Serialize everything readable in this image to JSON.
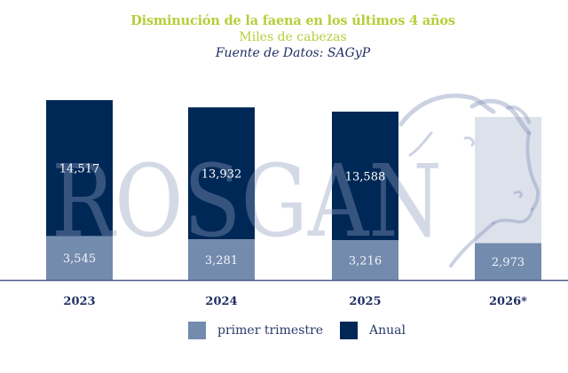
{
  "header": {
    "title": "Disminución de la faena en los últimos 4 años",
    "subtitle": "Miles de cabezas",
    "source": "Fuente de Datos: SAGyP"
  },
  "watermark": {
    "text": "ROSGAN",
    "icon": "cow-head-icon"
  },
  "colors": {
    "title": "#b5cf3b",
    "source": "#1f2f63",
    "anual": "#002856",
    "primer_trimestre": "#738bad",
    "projected": "#dde1ec",
    "baseline": "#4a5a8a",
    "axis_label": "#1f2f63"
  },
  "chart_data": {
    "type": "bar",
    "title": "Disminución de la faena en los últimos 4 años",
    "subtitle": "Miles de cabezas",
    "source": "Fuente de Datos: SAGyP",
    "xlabel": "",
    "ylabel": "Miles de cabezas",
    "ylim": [
      0,
      14517
    ],
    "grid": false,
    "legend_position": "bottom-center",
    "categories": [
      "2023",
      "2024",
      "2025",
      "2026*"
    ],
    "series": [
      {
        "name": "primer trimestre",
        "values": [
          3545,
          3281,
          3216,
          2973
        ],
        "labels": [
          "3,545",
          "3,281",
          "3,216",
          "2,973"
        ]
      },
      {
        "name": "Anual",
        "values": [
          14517,
          13932,
          13588,
          null
        ],
        "labels": [
          "14,517",
          "13,932",
          "13,588",
          ""
        ]
      }
    ],
    "projected_category": "2026*"
  },
  "legend": [
    {
      "label": "primer trimestre"
    },
    {
      "label": "Anual"
    }
  ]
}
